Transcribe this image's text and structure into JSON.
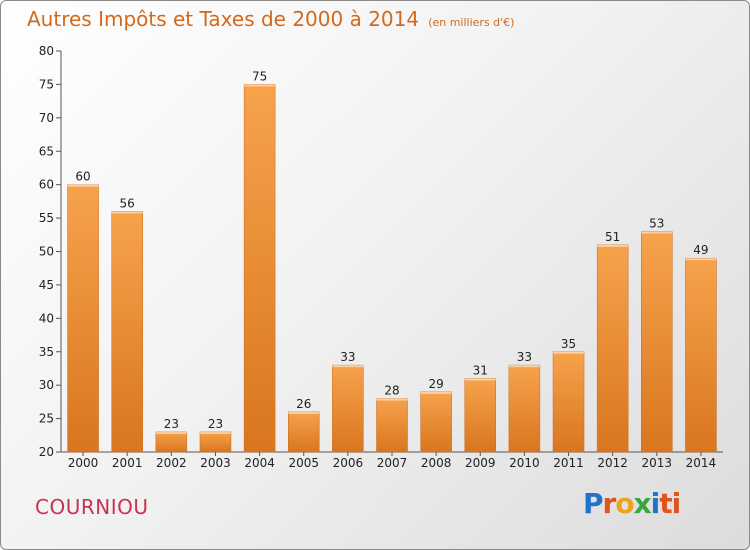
{
  "title": "Autres Impôts et Taxes de 2000 à 2014",
  "subtitle": "(en milliers d'€)",
  "commune": "COURNIOU",
  "logo": "Proxiti",
  "colors": {
    "bar_light": "#f6a34c",
    "bar_dark": "#d9761f",
    "title": "#d2691e",
    "commune": "#c8344f"
  },
  "chart_data": {
    "type": "bar",
    "title": "Autres Impôts et Taxes de 2000 à 2014",
    "subtitle": "(en milliers d'€)",
    "categories": [
      "2000",
      "2001",
      "2002",
      "2003",
      "2004",
      "2005",
      "2006",
      "2007",
      "2008",
      "2009",
      "2010",
      "2011",
      "2012",
      "2013",
      "2014"
    ],
    "values": [
      60,
      56,
      23,
      23,
      75,
      26,
      33,
      28,
      29,
      31,
      33,
      35,
      51,
      53,
      49
    ],
    "ylim": [
      20,
      80
    ],
    "yticks": [
      20,
      25,
      30,
      35,
      40,
      45,
      50,
      55,
      60,
      65,
      70,
      75,
      80
    ],
    "xlabel": "",
    "ylabel": "",
    "grid": false
  }
}
